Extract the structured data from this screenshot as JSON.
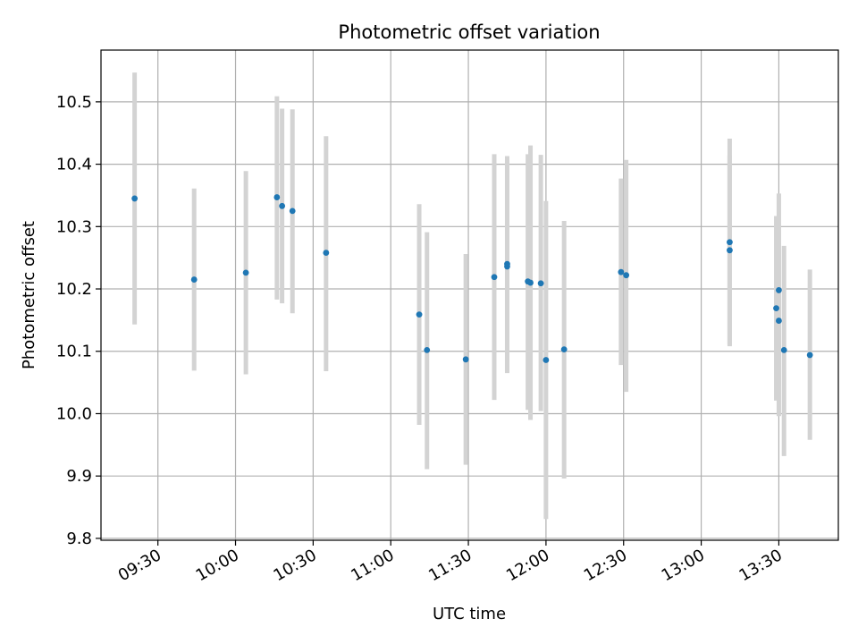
{
  "chart_data": {
    "type": "scatter",
    "title": "Photometric offset variation",
    "xlabel": "UTC time",
    "ylabel": "Photometric offset",
    "x_tick_labels": [
      "09:30",
      "10:00",
      "10:30",
      "11:00",
      "11:30",
      "12:00",
      "12:30",
      "13:00",
      "13:30"
    ],
    "y_tick_labels": [
      "9.8",
      "9.9",
      "10.0",
      "10.1",
      "10.2",
      "10.3",
      "10.4",
      "10.5"
    ],
    "xlim": [
      "09:08",
      "13:53"
    ],
    "ylim": [
      9.797,
      10.583
    ],
    "grid": true,
    "colors": {
      "point": "#1f77b4",
      "errorbar": "#d3d3d3",
      "grid": "#b0b0b0"
    },
    "points": [
      {
        "x": "09:21",
        "y": 10.345,
        "ylo": 10.143,
        "yhi": 10.547
      },
      {
        "x": "09:44",
        "y": 10.215,
        "ylo": 10.069,
        "yhi": 10.361
      },
      {
        "x": "10:04",
        "y": 10.226,
        "ylo": 10.063,
        "yhi": 10.389
      },
      {
        "x": "10:16",
        "y": 10.347,
        "ylo": 10.183,
        "yhi": 10.509
      },
      {
        "x": "10:18",
        "y": 10.333,
        "ylo": 10.177,
        "yhi": 10.489
      },
      {
        "x": "10:22",
        "y": 10.325,
        "ylo": 10.161,
        "yhi": 10.488
      },
      {
        "x": "10:35",
        "y": 10.258,
        "ylo": 10.068,
        "yhi": 10.445
      },
      {
        "x": "11:11",
        "y": 10.159,
        "ylo": 9.982,
        "yhi": 10.336
      },
      {
        "x": "11:14",
        "y": 10.102,
        "ylo": 9.911,
        "yhi": 10.291
      },
      {
        "x": "11:29",
        "y": 10.087,
        "ylo": 9.918,
        "yhi": 10.256
      },
      {
        "x": "11:40",
        "y": 10.219,
        "ylo": 10.022,
        "yhi": 10.416
      },
      {
        "x": "11:45",
        "y": 10.24,
        "ylo": 10.065,
        "yhi": 10.413
      },
      {
        "x": "11:45",
        "y": 10.236,
        "ylo": 10.067,
        "yhi": 10.407
      },
      {
        "x": "11:53",
        "y": 10.212,
        "ylo": 10.006,
        "yhi": 10.416
      },
      {
        "x": "11:54",
        "y": 10.21,
        "ylo": 9.99,
        "yhi": 10.43
      },
      {
        "x": "11:58",
        "y": 10.209,
        "ylo": 10.004,
        "yhi": 10.415
      },
      {
        "x": "12:00",
        "y": 10.086,
        "ylo": 9.831,
        "yhi": 10.341
      },
      {
        "x": "12:07",
        "y": 10.103,
        "ylo": 9.896,
        "yhi": 10.309
      },
      {
        "x": "12:29",
        "y": 10.227,
        "ylo": 10.078,
        "yhi": 10.377
      },
      {
        "x": "12:31",
        "y": 10.222,
        "ylo": 10.035,
        "yhi": 10.407
      },
      {
        "x": "13:11",
        "y": 10.262,
        "ylo": 10.11,
        "yhi": 10.414
      },
      {
        "x": "13:11",
        "y": 10.275,
        "ylo": 10.108,
        "yhi": 10.441
      },
      {
        "x": "13:29",
        "y": 10.169,
        "ylo": 10.021,
        "yhi": 10.317
      },
      {
        "x": "13:30",
        "y": 10.149,
        "ylo": 9.996,
        "yhi": 10.302
      },
      {
        "x": "13:30",
        "y": 10.198,
        "ylo": 10.044,
        "yhi": 10.353
      },
      {
        "x": "13:32",
        "y": 10.102,
        "ylo": 9.932,
        "yhi": 10.269
      },
      {
        "x": "13:42",
        "y": 10.094,
        "ylo": 9.958,
        "yhi": 10.231
      }
    ]
  }
}
